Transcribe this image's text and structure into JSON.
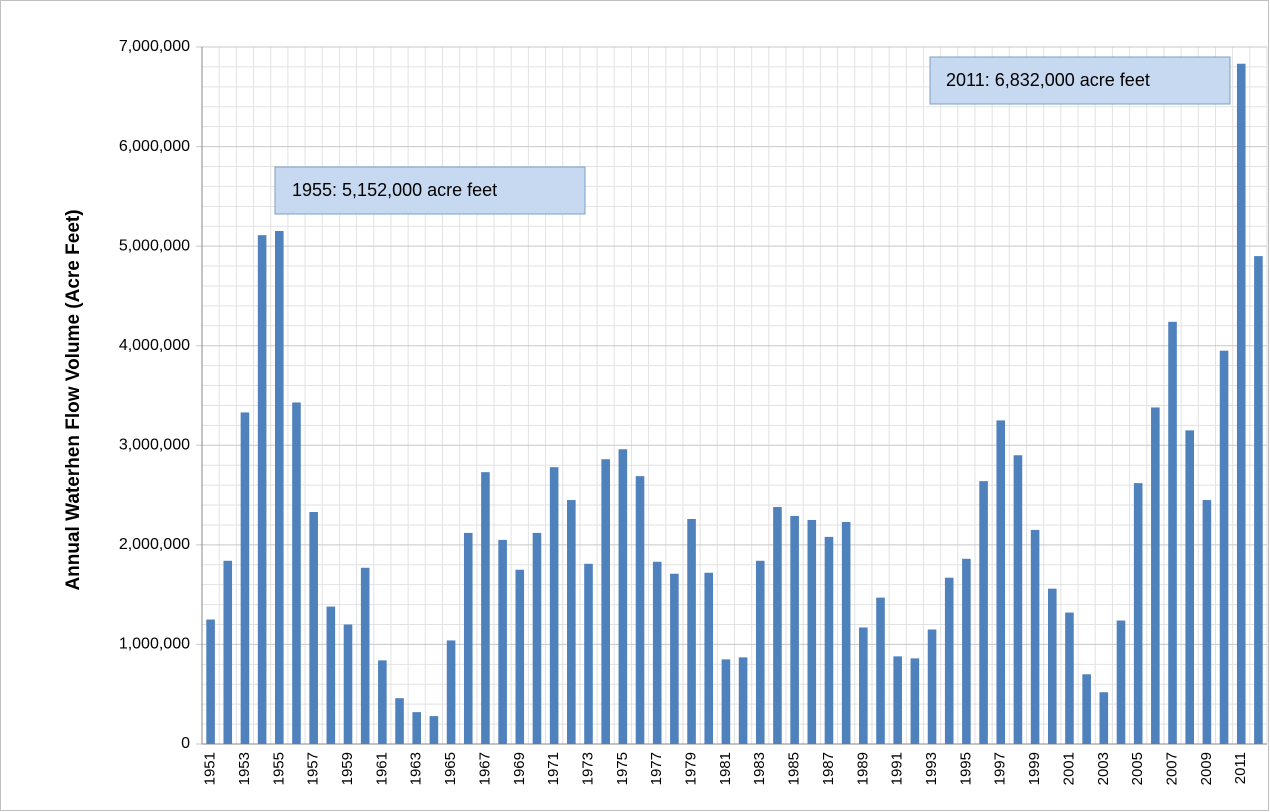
{
  "chart_data": {
    "type": "bar",
    "y_label": "Annual Waterhen Flow Volume (Acre Feet)",
    "annotations": [
      "1955: 5,152,000 acre feet",
      "2011: 6,832,000 acre feet"
    ],
    "categories": [
      "1951",
      null,
      "1953",
      null,
      "1955",
      null,
      "1957",
      null,
      "1959",
      null,
      "1961",
      null,
      "1963",
      null,
      "1965",
      null,
      "1967",
      null,
      "1969",
      null,
      "1971",
      null,
      "1973",
      null,
      "1975",
      null,
      "1977",
      null,
      "1979",
      null,
      "1981",
      null,
      "1983",
      null,
      "1985",
      null,
      "1987",
      null,
      "1989",
      null,
      "1991",
      null,
      "1993",
      null,
      "1995",
      null,
      "1997",
      null,
      "1999",
      null,
      "2001",
      null,
      "2003",
      null,
      "2005",
      null,
      "2007",
      null,
      "2009",
      null,
      "2011",
      null
    ],
    "values": [
      1250000,
      1840000,
      3330000,
      5110000,
      5152000,
      3430000,
      2330000,
      1380000,
      1200000,
      1770000,
      840000,
      460000,
      320000,
      280000,
      1040000,
      2120000,
      2730000,
      2050000,
      1750000,
      2120000,
      2780000,
      2450000,
      1810000,
      2860000,
      2960000,
      2690000,
      1830000,
      1710000,
      2260000,
      1720000,
      850000,
      870000,
      1840000,
      2380000,
      2290000,
      2250000,
      2080000,
      2230000,
      1170000,
      1470000,
      880000,
      860000,
      1150000,
      1670000,
      1860000,
      2640000,
      3250000,
      2900000,
      2150000,
      1560000,
      1320000,
      700000,
      520000,
      1240000,
      2620000,
      3380000,
      4240000,
      3150000,
      2450000,
      3950000,
      6832000,
      4900000
    ],
    "color": "#4f81bd",
    "ylim": [
      0,
      7000000
    ],
    "yticks": [
      0,
      {
        "value": 1000000,
        "label": "1,000,000"
      },
      {
        "value": 2000000,
        "label": "2,000,000"
      },
      {
        "value": 3000000,
        "label": "3,000,000"
      },
      {
        "value": 4000000,
        "label": "4,000,000"
      },
      {
        "value": 5000000,
        "label": "5,000,000"
      },
      {
        "value": 6000000,
        "label": "6,000,000"
      },
      {
        "value": 7000000,
        "label": "7,000,000"
      }
    ],
    "grid": true
  }
}
